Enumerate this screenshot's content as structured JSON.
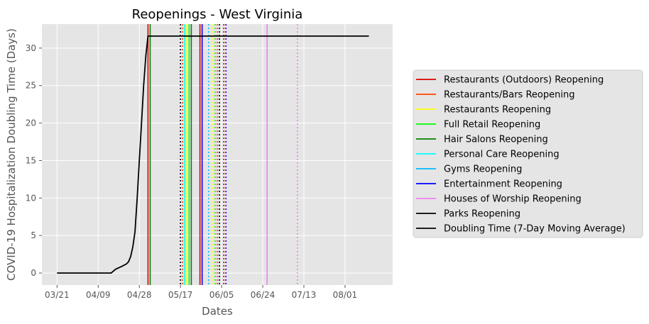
{
  "chart_data": {
    "type": "line",
    "title": "Reopenings - West Virginia",
    "xlabel": "Dates",
    "ylabel": "COVID-19 Hospitalization Doubling Time (Days)",
    "x_ticks": [
      {
        "date": "2020-03-21",
        "label": "03/21"
      },
      {
        "date": "2020-04-09",
        "label": "04/09"
      },
      {
        "date": "2020-04-28",
        "label": "04/28"
      },
      {
        "date": "2020-05-17",
        "label": "05/17"
      },
      {
        "date": "2020-06-05",
        "label": "06/05"
      },
      {
        "date": "2020-06-24",
        "label": "06/24"
      },
      {
        "date": "2020-07-13",
        "label": "07/13"
      },
      {
        "date": "2020-08-01",
        "label": "08/01"
      }
    ],
    "y_ticks": [
      0,
      5,
      10,
      15,
      20,
      25,
      30
    ],
    "xlim": [
      "2020-03-14",
      "2020-08-23"
    ],
    "ylim": [
      -1.6,
      33.2
    ],
    "grid": true,
    "legend_position": "right",
    "series": [
      {
        "name": "Doubling Time (7-Day Moving Average)",
        "color": "#000000",
        "points": [
          [
            "2020-03-21",
            0
          ],
          [
            "2020-04-15",
            0
          ],
          [
            "2020-04-17",
            0.5
          ],
          [
            "2020-04-20",
            0.9
          ],
          [
            "2020-04-22",
            1.2
          ],
          [
            "2020-04-23",
            1.5
          ],
          [
            "2020-04-24",
            2.2
          ],
          [
            "2020-04-25",
            3.5
          ],
          [
            "2020-04-26",
            5.5
          ],
          [
            "2020-04-27",
            10
          ],
          [
            "2020-04-28",
            15
          ],
          [
            "2020-04-29",
            20
          ],
          [
            "2020-04-30",
            25
          ],
          [
            "2020-05-01",
            29
          ],
          [
            "2020-05-02",
            31.6
          ],
          [
            "2020-08-12",
            31.6
          ]
        ]
      }
    ],
    "reopenings": [
      {
        "name": "Restaurants (Outdoors) Reopening",
        "color": "#dd0000",
        "events": [
          [
            "2020-05-02",
            "solid"
          ],
          [
            "2020-05-26",
            "solid"
          ],
          [
            "2020-06-06",
            "dotted"
          ]
        ]
      },
      {
        "name": "Restaurants/Bars Reopening",
        "color": "#ff4400",
        "events": [
          [
            "2020-05-18",
            "dotted"
          ],
          [
            "2020-06-03",
            "dotted"
          ]
        ]
      },
      {
        "name": "Restaurants Reopening",
        "color": "#ffff00",
        "events": [
          [
            "2020-05-20",
            "solid"
          ],
          [
            "2020-06-01",
            "dotted"
          ]
        ]
      },
      {
        "name": "Full Retail Reopening",
        "color": "#00ff00",
        "events": [
          [
            "2020-05-21",
            "solid"
          ],
          [
            "2020-06-02",
            "dotted"
          ]
        ]
      },
      {
        "name": "Hair Salons Reopening",
        "color": "#008000",
        "events": [
          [
            "2020-05-03",
            "solid"
          ],
          [
            "2020-05-22",
            "solid"
          ]
        ]
      },
      {
        "name": "Personal Care Reopening",
        "color": "#00ffff",
        "events": [
          [
            "2020-05-19",
            "solid"
          ]
        ]
      },
      {
        "name": "Gyms Reopening",
        "color": "#00bbff",
        "events": [
          [
            "2020-05-30",
            "dotted"
          ]
        ]
      },
      {
        "name": "Entertainment Reopening",
        "color": "#0000ff",
        "events": [
          [
            "2020-05-27",
            "solid"
          ],
          [
            "2020-06-07",
            "dotted"
          ]
        ]
      },
      {
        "name": "Houses of Worship Reopening",
        "color": "#ee82ee",
        "events": [
          [
            "2020-06-26",
            "solid"
          ],
          [
            "2020-07-10",
            "dotted"
          ]
        ]
      },
      {
        "name": "Parks Reopening",
        "color": "#000000",
        "events": [
          [
            "2020-05-17",
            "dotted"
          ],
          [
            "2020-06-04",
            "dotted"
          ]
        ]
      }
    ]
  }
}
